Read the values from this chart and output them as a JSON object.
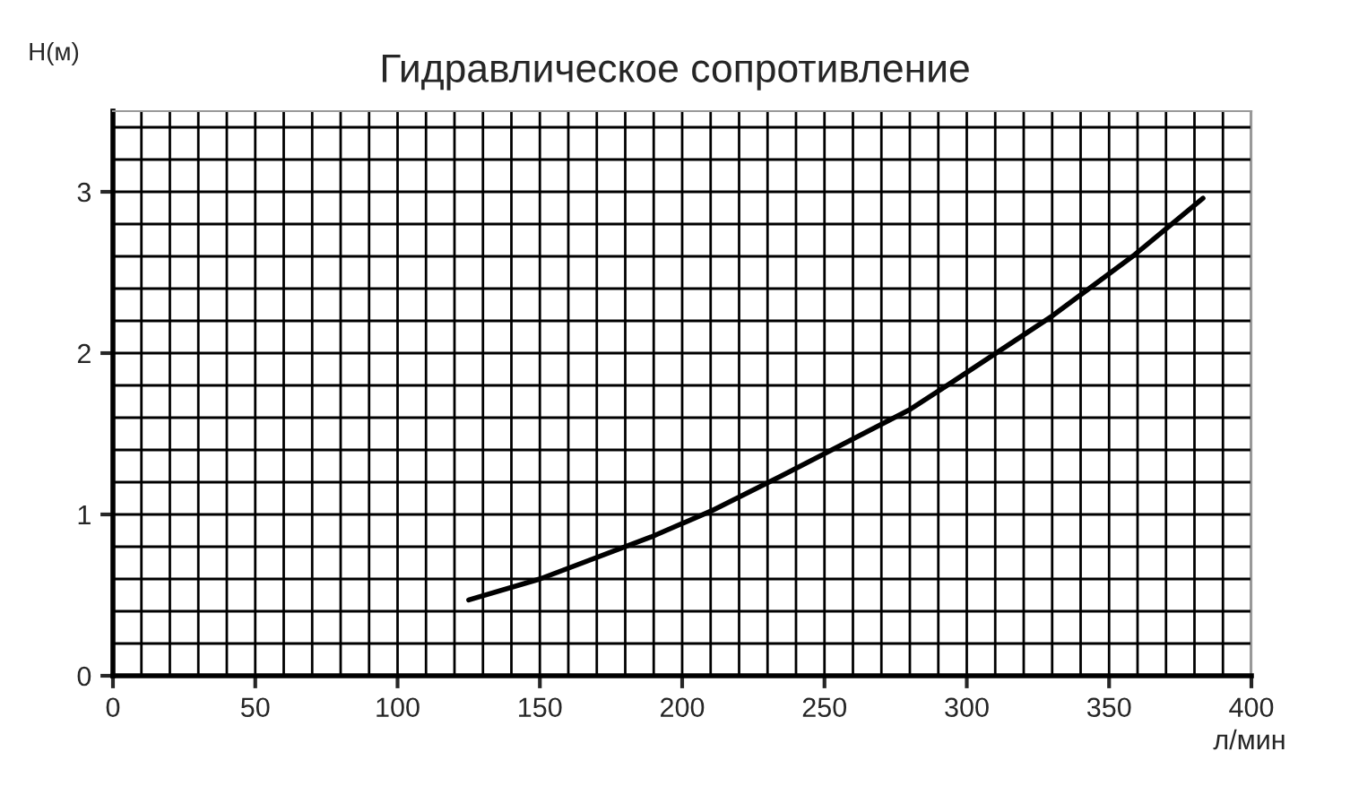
{
  "chart_data": {
    "type": "line",
    "title": "Гидравлическое сопротивление",
    "xlabel": "л/мин",
    "ylabel": "H(м)",
    "x": [
      125,
      150,
      189,
      210,
      235,
      280,
      294,
      330,
      359,
      383
    ],
    "series": [
      {
        "color": "#000000",
        "values": [
          0.47,
          0.6,
          0.86,
          1.02,
          1.24,
          1.65,
          1.81,
          2.23,
          2.61,
          2.96
        ]
      }
    ],
    "xlim": [
      0,
      400
    ],
    "ylim": [
      0,
      3.5
    ],
    "xticks": [
      0,
      {
        "value": 10,
        "label": null
      },
      {
        "value": 20,
        "label": null
      },
      {
        "value": 30,
        "label": null
      },
      {
        "value": 40,
        "label": null
      },
      50,
      {
        "value": 60,
        "label": null
      },
      {
        "value": 70,
        "label": null
      },
      {
        "value": 80,
        "label": null
      },
      {
        "value": 90,
        "label": null
      },
      100,
      {
        "value": 110,
        "label": null
      },
      {
        "value": 120,
        "label": null
      },
      {
        "value": 130,
        "label": null
      },
      {
        "value": 140,
        "label": null
      },
      150,
      {
        "value": 160,
        "label": null
      },
      {
        "value": 170,
        "label": null
      },
      {
        "value": 180,
        "label": null
      },
      {
        "value": 190,
        "label": null
      },
      200,
      {
        "value": 210,
        "label": null
      },
      {
        "value": 220,
        "label": null
      },
      {
        "value": 230,
        "label": null
      },
      {
        "value": 240,
        "label": null
      },
      250,
      {
        "value": 260,
        "label": null
      },
      {
        "value": 270,
        "label": null
      },
      {
        "value": 280,
        "label": null
      },
      {
        "value": 290,
        "label": null
      },
      300,
      {
        "value": 310,
        "label": null
      },
      {
        "value": 320,
        "label": null
      },
      {
        "value": 330,
        "label": null
      },
      {
        "value": 340,
        "label": null
      },
      350,
      {
        "value": 360,
        "label": null
      },
      {
        "value": 370,
        "label": null
      },
      {
        "value": 380,
        "label": null
      },
      {
        "value": 390,
        "label": null
      },
      400
    ],
    "yticks": [
      0,
      {
        "value": 0.2,
        "label": null
      },
      {
        "value": 0.4,
        "label": null
      },
      {
        "value": 0.6,
        "label": null
      },
      {
        "value": 0.8,
        "label": null
      },
      1,
      {
        "value": 1.2,
        "label": null
      },
      {
        "value": 1.4,
        "label": null
      },
      {
        "value": 1.6,
        "label": null
      },
      {
        "value": 1.8,
        "label": null
      },
      2,
      {
        "value": 2.2,
        "label": null
      },
      {
        "value": 2.4,
        "label": null
      },
      {
        "value": 2.6,
        "label": null
      },
      {
        "value": 2.8,
        "label": null
      },
      3,
      {
        "value": 3.2,
        "label": null
      },
      {
        "value": 3.4,
        "label": null
      }
    ],
    "grid": true,
    "line_style": "solid",
    "marker": "none"
  }
}
